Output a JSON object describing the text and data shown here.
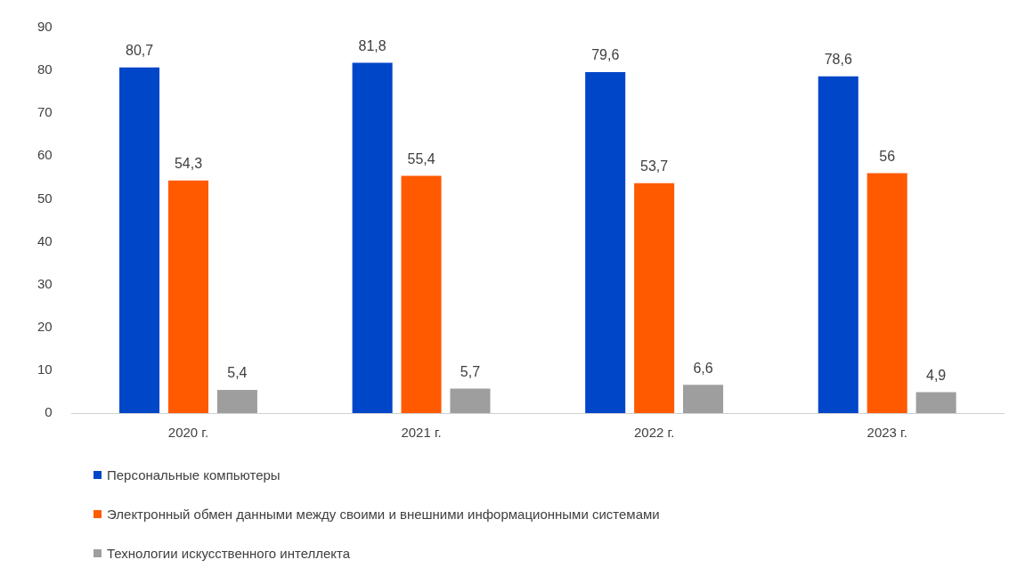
{
  "chart_data": {
    "type": "bar",
    "categories": [
      "2020 г.",
      "2021 г.",
      "2022 г.",
      "2023 г."
    ],
    "series": [
      {
        "name": "Персональные компьютеры",
        "color": "#0046c8",
        "values": [
          80.7,
          81.8,
          79.6,
          78.6
        ],
        "value_labels": [
          "80,7",
          "81,8",
          "79,6",
          "78,6"
        ]
      },
      {
        "name": "Электронный обмен данными между своими и внешними информационными системами",
        "color": "#ff5a00",
        "values": [
          54.3,
          55.4,
          53.7,
          56
        ],
        "value_labels": [
          "54,3",
          "55,4",
          "53,7",
          "56"
        ]
      },
      {
        "name": "Технологии искусственного интеллекта",
        "color": "#9e9e9e",
        "values": [
          5.4,
          5.7,
          6.6,
          4.9
        ],
        "value_labels": [
          "5,4",
          "5,7",
          "6,6",
          "4,9"
        ]
      }
    ],
    "ylim": [
      0,
      90
    ],
    "yticks": [
      0,
      10,
      20,
      30,
      40,
      50,
      60,
      70,
      80,
      90
    ],
    "grid": false,
    "legend": "bottom"
  }
}
